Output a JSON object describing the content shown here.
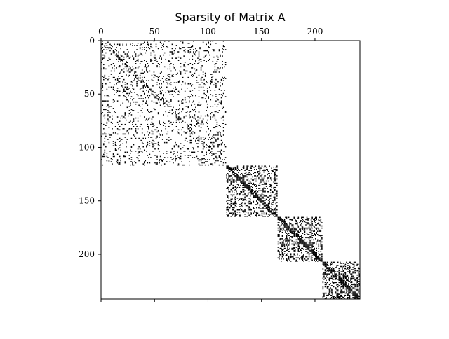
{
  "chart_data": {
    "type": "heatmap",
    "subtype": "sparsity-pattern",
    "title": "Sparsity of Matrix A",
    "xlabel": "",
    "ylabel": "",
    "matrix_size": [
      242,
      242
    ],
    "xlim": [
      0,
      242
    ],
    "ylim": [
      242,
      0
    ],
    "x_axis_position": "top",
    "x_ticks": [
      0,
      50,
      100,
      150,
      200
    ],
    "x_tick_labels": [
      "0",
      "50",
      "100",
      "150",
      "200"
    ],
    "y_ticks": [
      0,
      50,
      100,
      150,
      200
    ],
    "y_tick_labels": [
      "0",
      "50",
      "100",
      "150",
      "200"
    ],
    "grid": false,
    "legend": "none",
    "marker_color": "#000000",
    "background_color": "#ffffff",
    "blocks": [
      {
        "row_start": 0,
        "row_end": 116,
        "col_start": 0,
        "col_end": 116,
        "density": 0.11
      },
      {
        "row_start": 117,
        "row_end": 164,
        "col_start": 117,
        "col_end": 164,
        "density": 0.28
      },
      {
        "row_start": 165,
        "row_end": 206,
        "col_start": 165,
        "col_end": 206,
        "density": 0.3
      },
      {
        "row_start": 207,
        "row_end": 241,
        "col_start": 207,
        "col_end": 241,
        "density": 0.38
      }
    ]
  }
}
